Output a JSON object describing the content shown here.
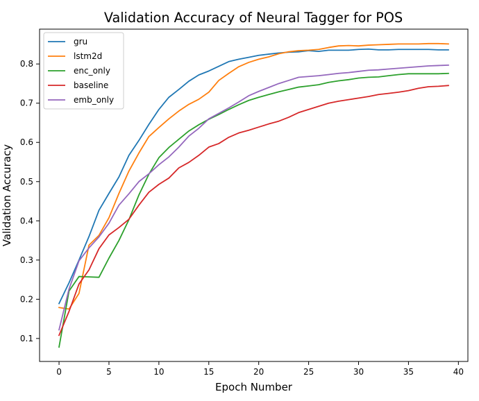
{
  "chart_data": {
    "type": "line",
    "title": "Validation Accuracy of Neural Tagger for POS",
    "xlabel": "Epoch Number",
    "ylabel": "Validation Accuracy",
    "xlim": [
      -1.95,
      40.95
    ],
    "ylim": [
      0.0414,
      0.8888
    ],
    "xticks": [
      0,
      5,
      10,
      15,
      20,
      25,
      30,
      35,
      40
    ],
    "yticks": [
      0.1,
      0.2,
      0.3,
      0.4,
      0.5,
      0.6,
      0.7,
      0.8
    ],
    "grid": false,
    "legend": "top-left",
    "x": [
      0,
      1,
      2,
      3,
      4,
      5,
      6,
      7,
      8,
      9,
      10,
      11,
      12,
      13,
      14,
      15,
      16,
      17,
      18,
      19,
      20,
      21,
      22,
      23,
      24,
      25,
      26,
      27,
      28,
      29,
      30,
      31,
      32,
      33,
      34,
      35,
      36,
      37,
      38,
      39
    ],
    "series": [
      {
        "name": "gru",
        "color": "#1f77b4",
        "values": [
          0.189,
          0.242,
          0.3,
          0.36,
          0.427,
          0.47,
          0.512,
          0.567,
          0.605,
          0.646,
          0.684,
          0.715,
          0.735,
          0.756,
          0.772,
          0.782,
          0.794,
          0.806,
          0.812,
          0.817,
          0.822,
          0.825,
          0.828,
          0.83,
          0.831,
          0.834,
          0.832,
          0.835,
          0.835,
          0.835,
          0.837,
          0.838,
          0.836,
          0.836,
          0.837,
          0.837,
          0.837,
          0.837,
          0.836,
          0.836
        ]
      },
      {
        "name": "lstm2d",
        "color": "#ff7f0e",
        "values": [
          0.179,
          0.175,
          0.215,
          0.338,
          0.363,
          0.408,
          0.47,
          0.527,
          0.573,
          0.615,
          0.638,
          0.66,
          0.68,
          0.697,
          0.71,
          0.728,
          0.758,
          0.776,
          0.793,
          0.804,
          0.812,
          0.818,
          0.826,
          0.831,
          0.834,
          0.835,
          0.837,
          0.842,
          0.846,
          0.847,
          0.846,
          0.848,
          0.849,
          0.85,
          0.851,
          0.851,
          0.851,
          0.852,
          0.852,
          0.851
        ]
      },
      {
        "name": "enc_only",
        "color": "#2ca02c",
        "values": [
          0.078,
          0.221,
          0.258,
          0.257,
          0.256,
          0.305,
          0.35,
          0.403,
          0.466,
          0.519,
          0.561,
          0.587,
          0.608,
          0.629,
          0.645,
          0.659,
          0.671,
          0.684,
          0.696,
          0.707,
          0.715,
          0.722,
          0.729,
          0.735,
          0.741,
          0.744,
          0.747,
          0.753,
          0.757,
          0.76,
          0.764,
          0.766,
          0.767,
          0.77,
          0.773,
          0.775,
          0.775,
          0.775,
          0.775,
          0.776
        ]
      },
      {
        "name": "baseline",
        "color": "#d62728",
        "values": [
          0.108,
          0.169,
          0.239,
          0.275,
          0.329,
          0.364,
          0.383,
          0.404,
          0.44,
          0.473,
          0.493,
          0.509,
          0.535,
          0.549,
          0.567,
          0.588,
          0.597,
          0.613,
          0.624,
          0.631,
          0.639,
          0.647,
          0.654,
          0.664,
          0.676,
          0.684,
          0.692,
          0.7,
          0.705,
          0.709,
          0.713,
          0.717,
          0.722,
          0.725,
          0.728,
          0.732,
          0.738,
          0.742,
          0.743,
          0.745
        ]
      },
      {
        "name": "emb_only",
        "color": "#9467bd",
        "values": [
          0.122,
          0.226,
          0.298,
          0.331,
          0.359,
          0.394,
          0.44,
          0.469,
          0.5,
          0.52,
          0.543,
          0.563,
          0.588,
          0.616,
          0.636,
          0.66,
          0.674,
          0.688,
          0.703,
          0.719,
          0.73,
          0.74,
          0.75,
          0.758,
          0.766,
          0.768,
          0.77,
          0.773,
          0.776,
          0.778,
          0.781,
          0.784,
          0.785,
          0.787,
          0.789,
          0.791,
          0.793,
          0.795,
          0.796,
          0.797
        ]
      }
    ]
  }
}
